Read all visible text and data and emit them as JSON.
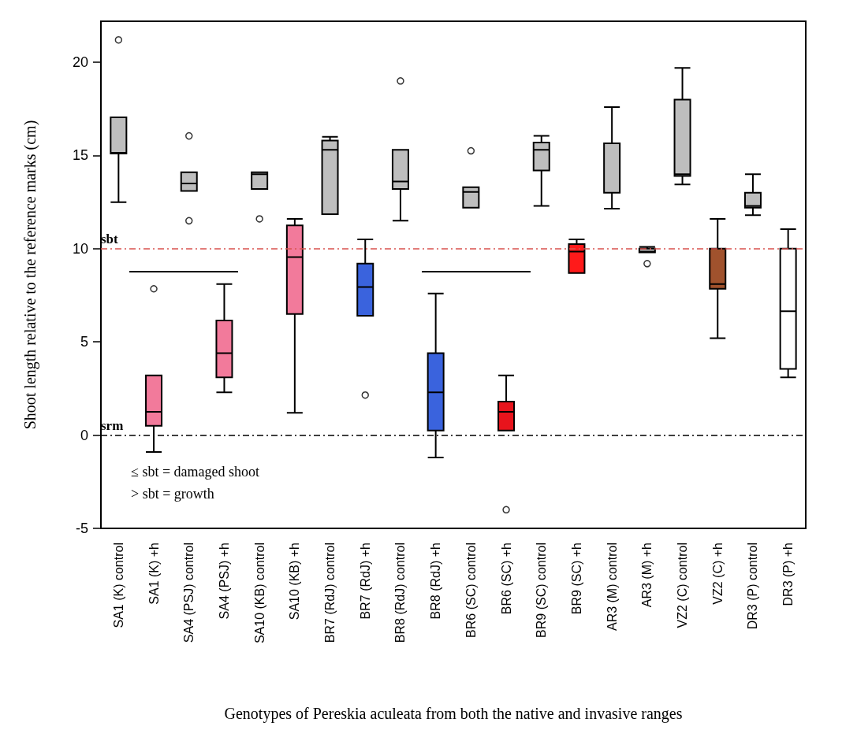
{
  "chart_data": {
    "type": "box",
    "categories": [
      "SA1 (K) control",
      "SA1 (K) +h",
      "SA4 (PSJ) control",
      "SA4 (PSJ) +h",
      "SA10 (KB) control",
      "SA10 (KB) +h",
      "BR7 (RdJ) control",
      "BR7 (RdJ) +h",
      "BR8 (RdJ) control",
      "BR8 (RdJ) +h",
      "BR6 (SC) control",
      "BR6 (SC) +h",
      "BR9 (SC) control",
      "BR9 (SC) +h",
      "AR3 (M) control",
      "AR3 (M) +h",
      "VZ2 (C) control",
      "VZ2 (C) +h",
      "DR3 (P) control",
      "DR3 (P) +h"
    ],
    "boxes": [
      {
        "low": 12.5,
        "q1": 15.1,
        "median": 15.15,
        "q3": 17.05,
        "high": 17.05,
        "outliers": [
          21.2
        ]
      },
      {
        "low": -0.9,
        "q1": 0.5,
        "median": 1.25,
        "q3": 3.2,
        "high": 3.2,
        "outliers": [
          7.85
        ]
      },
      {
        "low": 13.1,
        "q1": 13.1,
        "median": 13.5,
        "q3": 14.1,
        "high": 14.1,
        "outliers": [
          16.05,
          11.5
        ]
      },
      {
        "low": 2.3,
        "q1": 3.1,
        "median": 4.4,
        "q3": 6.15,
        "high": 8.1
      },
      {
        "low": 13.2,
        "q1": 13.2,
        "median": 14.0,
        "q3": 14.1,
        "high": 14.1,
        "outliers": [
          11.6
        ]
      },
      {
        "low": 1.2,
        "q1": 6.5,
        "median": 9.55,
        "q3": 11.25,
        "high": 11.6
      },
      {
        "low": 11.85,
        "q1": 11.85,
        "median": 15.3,
        "q3": 15.8,
        "high": 16.0
      },
      {
        "low": 6.4,
        "q1": 6.4,
        "median": 7.95,
        "q3": 9.2,
        "high": 10.5,
        "outliers": [
          2.15
        ]
      },
      {
        "low": 11.5,
        "q1": 13.2,
        "median": 13.6,
        "q3": 15.3,
        "high": 15.3,
        "outliers": [
          19.0
        ]
      },
      {
        "low": -1.2,
        "q1": 0.25,
        "median": 2.3,
        "q3": 4.4,
        "high": 7.6
      },
      {
        "low": 12.2,
        "q1": 12.2,
        "median": 13.05,
        "q3": 13.3,
        "high": 13.3,
        "outliers": [
          15.25
        ]
      },
      {
        "low": 0.25,
        "q1": 0.25,
        "median": 1.25,
        "q3": 1.8,
        "high": 3.2,
        "outliers": [
          -4.0
        ]
      },
      {
        "low": 12.3,
        "q1": 14.2,
        "median": 15.3,
        "q3": 15.7,
        "high": 16.05
      },
      {
        "low": 8.7,
        "q1": 8.7,
        "median": 9.85,
        "q3": 10.25,
        "high": 10.5
      },
      {
        "low": 12.15,
        "q1": 13.0,
        "median": 15.65,
        "q3": 15.65,
        "high": 17.6
      },
      {
        "low": 9.8,
        "q1": 9.8,
        "median": 9.85,
        "q3": 10.0,
        "high": 10.1,
        "outliers": [
          9.2
        ]
      },
      {
        "low": 13.45,
        "q1": 13.9,
        "median": 14.0,
        "q3": 18.0,
        "high": 19.7
      },
      {
        "low": 5.2,
        "q1": 7.85,
        "median": 8.1,
        "q3": 10.0,
        "high": 11.6
      },
      {
        "low": 11.8,
        "q1": 12.2,
        "median": 12.3,
        "q3": 13.0,
        "high": 14.0
      },
      {
        "low": 3.1,
        "q1": 3.55,
        "median": 6.65,
        "q3": 10.0,
        "high": 11.05
      }
    ],
    "colors": [
      "#bebebe",
      "#f27a9b",
      "#bebebe",
      "#f27a9b",
      "#bebebe",
      "#f27a9b",
      "#bebebe",
      "#3a63dd",
      "#bebebe",
      "#3a63dd",
      "#bebebe",
      "#e8141c",
      "#bebebe",
      "#ff1a1a",
      "#bebebe",
      "#bebebe",
      "#bebebe",
      "#a0522d",
      "#bebebe",
      "#ffffff"
    ],
    "xlabel": "Genotypes of Pereskia aculeata from both the native and invasive ranges",
    "ylabel": "Shoot length relative to the reference marks (cm)",
    "ylim": [
      -5,
      22.2
    ],
    "yticks": [
      -5,
      0,
      5,
      10,
      15,
      20
    ],
    "ref_lines": [
      {
        "axis": "y",
        "value": 10,
        "label": "sbt",
        "color": "#d9534f",
        "line_style": "dashdot"
      },
      {
        "axis": "y",
        "value": 0,
        "label": "srm",
        "color": "#000000",
        "line_style": "dashdot"
      }
    ],
    "annotations": [
      "≤ sbt = damaged shoot",
      "> sbt = growth"
    ],
    "grid": false
  }
}
